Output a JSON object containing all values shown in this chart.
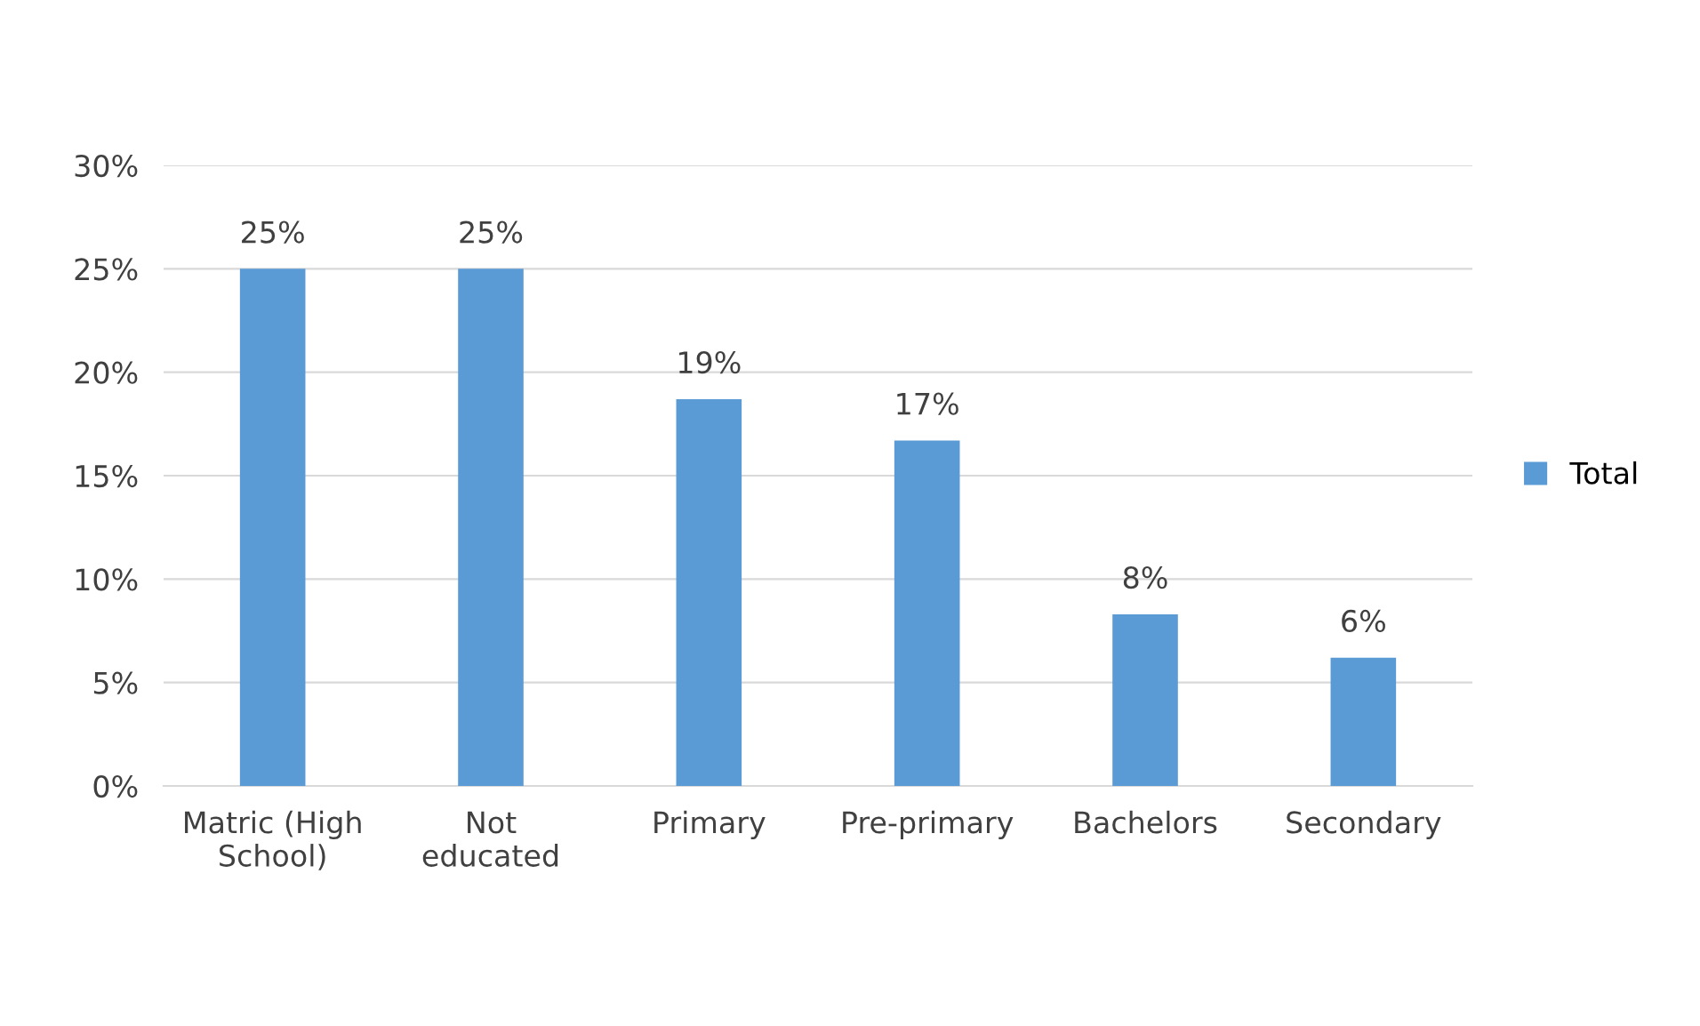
{
  "chart_data": {
    "type": "bar",
    "categories": [
      "Matric (High\nSchool)",
      "Not\neducated",
      "Primary",
      "Pre-primary",
      "Bachelors",
      "Secondary"
    ],
    "series": [
      {
        "name": "Total",
        "color": "#5b9bd5",
        "values": [
          25,
          25,
          18.7,
          16.7,
          8.3,
          6.2
        ],
        "value_labels": [
          "25%",
          "25%",
          "19%",
          "17%",
          "8%",
          "6%"
        ]
      }
    ],
    "ylim": [
      0,
      30
    ],
    "yticks": [
      {
        "value": 0,
        "label": "0%"
      },
      {
        "value": 5,
        "label": "5%"
      },
      {
        "value": 10,
        "label": "10%"
      },
      {
        "value": 15,
        "label": "15%"
      },
      {
        "value": 20,
        "label": "20%"
      },
      {
        "value": 25,
        "label": "25%"
      },
      {
        "value": 30,
        "label": "30%"
      }
    ],
    "grid": "y",
    "legend": "right"
  }
}
